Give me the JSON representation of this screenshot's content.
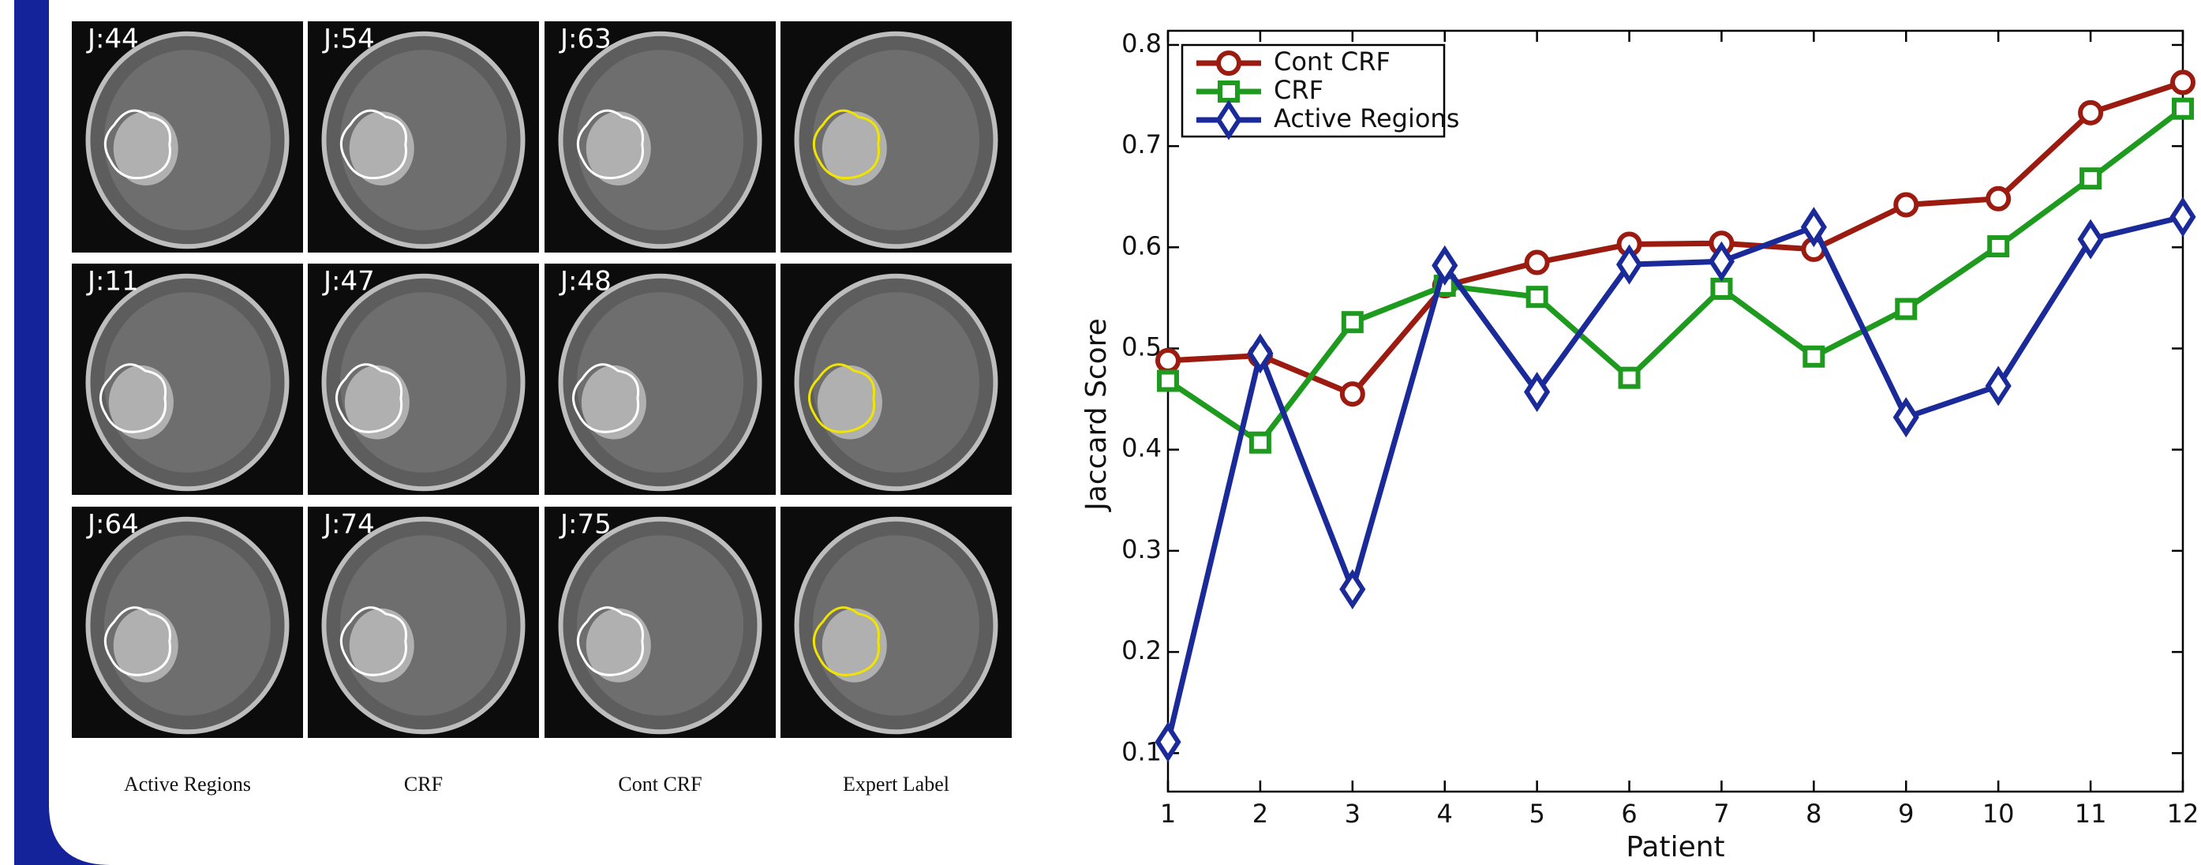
{
  "panels": {
    "rows": [
      [
        "J:44",
        "J:54",
        "J:63"
      ],
      [
        "J:11",
        "J:47",
        "J:48"
      ],
      [
        "J:64",
        "J:74",
        "J:75"
      ]
    ],
    "captions": [
      "Active Regions",
      "CRF",
      "Cont CRF",
      "Expert Label"
    ]
  },
  "chart_data": {
    "type": "line",
    "xlabel": "Patient",
    "ylabel": "Jaccard Score",
    "x": [
      1,
      2,
      3,
      4,
      5,
      6,
      7,
      8,
      9,
      10,
      11,
      12
    ],
    "xlim": [
      1,
      12
    ],
    "xticks": [
      1,
      2,
      3,
      4,
      5,
      6,
      7,
      8,
      9,
      10,
      11,
      12
    ],
    "ylim": [
      0.062,
      0.814
    ],
    "yticks": [
      0.1,
      0.2,
      0.3,
      0.4,
      0.5,
      0.6,
      0.7,
      0.8
    ],
    "legend": "upper left",
    "series": [
      {
        "name": "Cont CRF",
        "color": "#9b1b10",
        "marker": "circle",
        "values": [
          0.488,
          0.493,
          0.455,
          0.562,
          0.585,
          0.603,
          0.604,
          0.598,
          0.642,
          0.648,
          0.733,
          0.763
        ]
      },
      {
        "name": "CRF",
        "color": "#1e9a1e",
        "marker": "square",
        "values": [
          0.468,
          0.407,
          0.526,
          0.562,
          0.551,
          0.471,
          0.559,
          0.492,
          0.539,
          0.601,
          0.668,
          0.737
        ]
      },
      {
        "name": "Active Regions",
        "color": "#1a2a98",
        "marker": "diamond",
        "values": [
          0.111,
          0.495,
          0.262,
          0.582,
          0.457,
          0.583,
          0.586,
          0.62,
          0.432,
          0.463,
          0.608,
          0.63
        ]
      }
    ]
  }
}
